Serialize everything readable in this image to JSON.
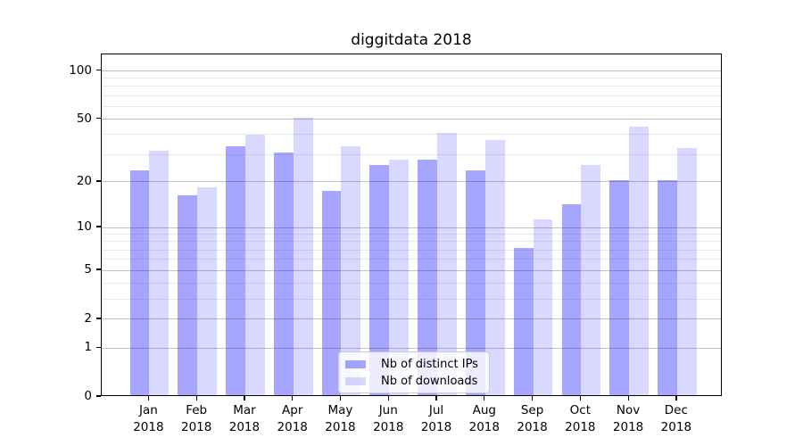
{
  "figure": {
    "title": "diggitdata 2018"
  },
  "chart_data": {
    "type": "bar",
    "title": "diggitdata 2018",
    "categories": [
      "Jan 2018",
      "Feb 2018",
      "Mar 2018",
      "Apr 2018",
      "May 2018",
      "Jun 2018",
      "Jul 2018",
      "Aug 2018",
      "Sep 2018",
      "Oct 2018",
      "Nov 2018",
      "Dec 2018"
    ],
    "x_tick_months": [
      "Jan",
      "Feb",
      "Mar",
      "Apr",
      "May",
      "Jun",
      "Jul",
      "Aug",
      "Sep",
      "Oct",
      "Nov",
      "Dec"
    ],
    "x_tick_year": "2018",
    "series": [
      {
        "name": "Nb of distinct IPs",
        "color": "#a6a6ff",
        "fill_rgba": "rgba(0,0,255,0.35)",
        "values": [
          23,
          16,
          33,
          30,
          17,
          25,
          27,
          23,
          7,
          14,
          20,
          20
        ]
      },
      {
        "name": "Nb of downloads",
        "color": "#d9d9ff",
        "fill_rgba": "rgba(0,0,255,0.15)",
        "values": [
          31,
          18,
          39,
          50,
          33,
          27,
          40,
          36,
          11,
          25,
          44,
          32
        ]
      }
    ],
    "yscale": "log(1+y)",
    "ylim": [
      0,
      126
    ],
    "yticks": [
      0,
      1,
      2,
      5,
      10,
      20,
      50,
      100
    ],
    "yticks_minor": [
      3,
      4,
      6,
      7,
      8,
      9,
      30,
      40,
      60,
      70,
      80,
      90
    ],
    "grid": true,
    "legend_position": "lower center",
    "colors": {
      "spine": "#000000",
      "grid_major": "#c2c2c2",
      "grid_minor": "#e9e9e9"
    }
  },
  "legend": {
    "items": [
      "Nb of distinct IPs",
      "Nb of downloads"
    ]
  }
}
